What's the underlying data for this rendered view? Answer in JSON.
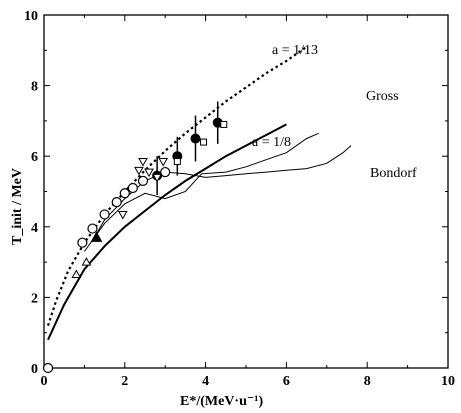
{
  "chart_data": {
    "type": "line",
    "xlabel": "E*/(MeV·u⁻¹)",
    "ylabel": "T_init / MeV",
    "xlim": [
      0,
      10
    ],
    "ylim": [
      0,
      10
    ],
    "x_ticks": [
      "0",
      "2",
      "4",
      "6",
      "8",
      "10"
    ],
    "y_ticks": [
      "0",
      "2",
      "4",
      "6",
      "8",
      "10"
    ],
    "grid": false,
    "annotations": {
      "a13": "a = 1/13",
      "a18": "a = 1/8",
      "gross": "Gross",
      "bondorf": "Bondorf"
    },
    "series": [
      {
        "name": "a = 1/13",
        "style": "dotted",
        "points": [
          [
            0.1,
            1.2
          ],
          [
            0.3,
            1.9
          ],
          [
            0.6,
            2.75
          ],
          [
            1.0,
            3.55
          ],
          [
            1.5,
            4.35
          ],
          [
            2.0,
            5.0
          ],
          [
            2.5,
            5.6
          ],
          [
            3.0,
            6.15
          ],
          [
            3.5,
            6.65
          ],
          [
            4.0,
            7.1
          ],
          [
            4.5,
            7.55
          ],
          [
            5.0,
            7.95
          ],
          [
            5.5,
            8.35
          ],
          [
            6.0,
            8.7
          ],
          [
            6.5,
            9.1
          ]
        ]
      },
      {
        "name": "a = 1/8",
        "style": "solid",
        "points": [
          [
            0.1,
            0.8
          ],
          [
            0.5,
            1.8
          ],
          [
            1.0,
            2.8
          ],
          [
            1.5,
            3.45
          ],
          [
            2.0,
            4.0
          ],
          [
            2.5,
            4.45
          ],
          [
            3.0,
            4.9
          ],
          [
            3.5,
            5.3
          ],
          [
            4.0,
            5.65
          ],
          [
            4.5,
            6.0
          ],
          [
            5.0,
            6.3
          ],
          [
            5.5,
            6.6
          ],
          [
            6.0,
            6.9
          ]
        ]
      },
      {
        "name": "Gross",
        "style": "solid-thin",
        "points": [
          [
            1.0,
            3.3
          ],
          [
            1.5,
            4.1
          ],
          [
            2.0,
            4.65
          ],
          [
            2.5,
            4.95
          ],
          [
            3.0,
            4.8
          ],
          [
            3.5,
            5.0
          ],
          [
            3.9,
            5.5
          ],
          [
            4.5,
            5.55
          ],
          [
            5.0,
            5.7
          ],
          [
            5.5,
            5.9
          ],
          [
            6.0,
            6.1
          ],
          [
            6.5,
            6.5
          ],
          [
            6.8,
            6.65
          ]
        ]
      },
      {
        "name": "Bondorf",
        "style": "solid-thin",
        "points": [
          [
            1.2,
            3.6
          ],
          [
            1.5,
            4.2
          ],
          [
            2.0,
            4.8
          ],
          [
            2.5,
            5.3
          ],
          [
            3.0,
            5.55
          ],
          [
            3.5,
            5.5
          ],
          [
            4.0,
            5.4
          ],
          [
            4.5,
            5.45
          ],
          [
            5.0,
            5.5
          ],
          [
            5.5,
            5.55
          ],
          [
            6.0,
            5.6
          ],
          [
            6.5,
            5.65
          ],
          [
            7.0,
            5.8
          ],
          [
            7.4,
            6.1
          ],
          [
            7.6,
            6.3
          ]
        ]
      }
    ],
    "data_points": [
      {
        "marker": "open-circle",
        "x": 0.95,
        "y": 3.55
      },
      {
        "marker": "open-circle",
        "x": 1.2,
        "y": 3.95
      },
      {
        "marker": "open-circle",
        "x": 1.5,
        "y": 4.35
      },
      {
        "marker": "open-circle",
        "x": 1.8,
        "y": 4.7
      },
      {
        "marker": "open-circle",
        "x": 2.0,
        "y": 4.95
      },
      {
        "marker": "open-circle",
        "x": 2.2,
        "y": 5.1
      },
      {
        "marker": "open-circle",
        "x": 2.45,
        "y": 5.3
      },
      {
        "marker": "open-circle",
        "x": 3.0,
        "y": 5.55
      },
      {
        "marker": "open-circle",
        "x": 0.1,
        "y": 0.0
      },
      {
        "marker": "filled-circle",
        "x": 2.8,
        "y": 5.45,
        "err": 0.55
      },
      {
        "marker": "filled-circle",
        "x": 3.3,
        "y": 6.0,
        "err": 0.55
      },
      {
        "marker": "filled-circle",
        "x": 3.75,
        "y": 6.5,
        "err": 0.65
      },
      {
        "marker": "filled-circle",
        "x": 4.3,
        "y": 6.95,
        "err": 0.6
      },
      {
        "marker": "open-square",
        "x": 3.95,
        "y": 6.4
      },
      {
        "marker": "open-square",
        "x": 3.3,
        "y": 5.85
      },
      {
        "marker": "open-square",
        "x": 4.45,
        "y": 6.9
      },
      {
        "marker": "filled-triangle",
        "x": 1.3,
        "y": 3.7
      },
      {
        "marker": "open-triangle",
        "x": 0.8,
        "y": 2.65
      },
      {
        "marker": "open-triangle",
        "x": 1.05,
        "y": 3.0
      },
      {
        "marker": "open-triangle-down",
        "x": 2.45,
        "y": 5.85
      },
      {
        "marker": "open-triangle-down",
        "x": 2.35,
        "y": 5.6
      },
      {
        "marker": "open-triangle-down",
        "x": 2.6,
        "y": 5.55
      },
      {
        "marker": "open-triangle-down",
        "x": 2.95,
        "y": 5.85
      },
      {
        "marker": "open-triangle-down",
        "x": 1.95,
        "y": 4.35
      },
      {
        "marker": "open-triangle-down",
        "x": 2.8,
        "y": 5.4
      }
    ]
  }
}
